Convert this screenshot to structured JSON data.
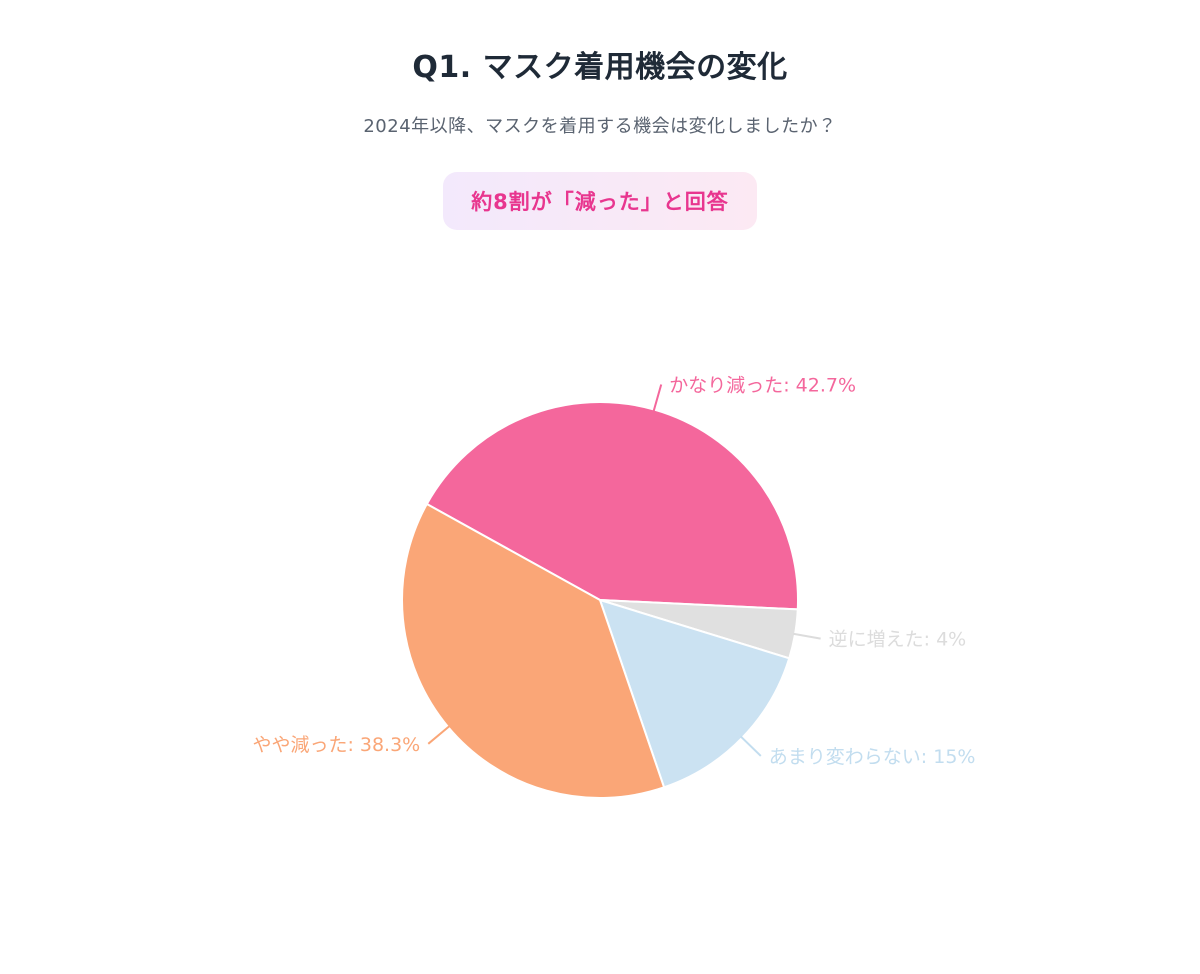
{
  "header": {
    "title": "Q1. マスク着用機会の変化",
    "subtitle": "2024年以降、マスクを着用する機会は変化しましたか？",
    "highlight_badge": "約8割が「減った」と回答",
    "badge_text_color": "#e8368f"
  },
  "chart_data": {
    "type": "pie",
    "title": "Q1. マスク着用機会の変化",
    "question": "2024年以降、マスクを着用する機会は変化しましたか？",
    "annotation": "約8割が「減った」と回答",
    "labels": [
      "かなり減った",
      "逆に増えた",
      "あまり変わらない",
      "やや減った"
    ],
    "values": [
      42.7,
      4,
      15,
      38.3
    ],
    "unit": "%",
    "colors": [
      "#f4679c",
      "#e0e0e0",
      "#cbe2f2",
      "#faa677"
    ],
    "label_colors": [
      "#f4679c",
      "#dcdcdc",
      "#c2ddef",
      "#faa677"
    ],
    "start_angle_deg": -61,
    "direction": "clockwise",
    "legend_position": "none",
    "grid": false
  }
}
